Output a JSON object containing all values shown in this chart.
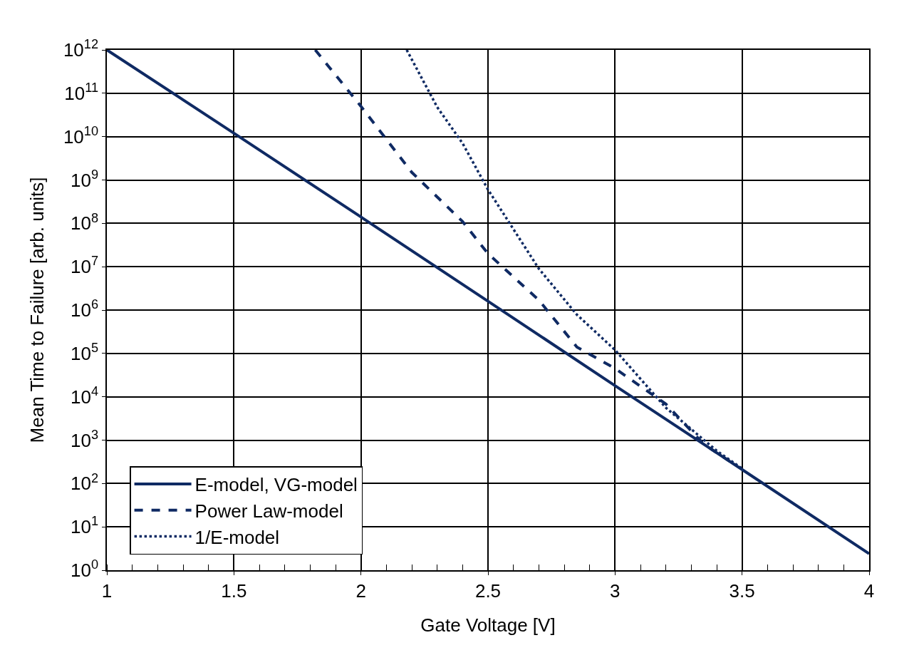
{
  "chart_data": {
    "type": "line",
    "xlabel": "Gate Voltage [V]",
    "ylabel": "Mean Time to Failure [arb. units]",
    "xlim": [
      1,
      4
    ],
    "xticks": [
      1,
      1.5,
      2,
      2.5,
      3,
      3.5,
      4
    ],
    "ylim": [
      1,
      1000000000000.0
    ],
    "log": "y",
    "yticks": [
      {
        "value": 1,
        "label": "10$^{0}$"
      },
      {
        "value": 10,
        "label": "10$^{1}$"
      },
      {
        "value": 100,
        "label": "10$^{2}$"
      },
      {
        "value": 1000,
        "label": "10$^{3}$"
      },
      {
        "value": 10000,
        "label": "10$^{4}$"
      },
      {
        "value": 100000,
        "label": "10$^{5}$"
      },
      {
        "value": 1000000,
        "label": "10$^{6}$"
      },
      {
        "value": 10000000,
        "label": "10$^{7}$"
      },
      {
        "value": 100000000,
        "label": "10$^{8}$"
      },
      {
        "value": 1000000000,
        "label": "10$^{9}$"
      },
      {
        "value": 10000000000,
        "label": "10$^{10}$"
      },
      {
        "value": 100000000000,
        "label": "10$^{11}$"
      },
      {
        "value": 1000000000000,
        "label": "10$^{12}$"
      }
    ],
    "grid": true,
    "legend": "bottom left",
    "marker": "none",
    "series": [
      {
        "name": "E-model, VG-model",
        "color": "#0f2a63",
        "line_style": "solid",
        "x": [
          1,
          1.5,
          2,
          2.5,
          3,
          3.5,
          4
        ],
        "values": [
          1000000000000.0,
          12000000000.0,
          140000000.0,
          1600000.0,
          18000.0,
          210.0,
          2.4
        ]
      },
      {
        "name": "Power Law-model",
        "color": "#0f2a63",
        "line_style": "dashed",
        "x": [
          1.82,
          2,
          2.2,
          2.4,
          2.5,
          2.7,
          2.85,
          3,
          3.2,
          3.35,
          3.45
        ],
        "values": [
          1000000000000.0,
          50000000000.0,
          1500000000.0,
          110000000.0,
          20000000.0,
          1700000.0,
          140000.0,
          45000.0,
          6800.0,
          800.0,
          330.0
        ]
      },
      {
        "name": "1/E-model",
        "color": "#0f2a63",
        "line_style": "dotted",
        "x": [
          2.18,
          2.3,
          2.4,
          2.5,
          2.7,
          2.85,
          3,
          3.2,
          3.4,
          3.5
        ],
        "values": [
          1000000000000.0,
          48000000000.0,
          7000000000.0,
          600000000.0,
          9000000.0,
          780000.0,
          120000.0,
          5600.0,
          570.0,
          220.0
        ]
      }
    ]
  }
}
